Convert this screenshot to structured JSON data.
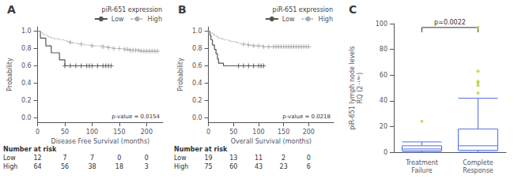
{
  "chart_data": [
    {
      "type": "step",
      "label": "A",
      "xlabel": "Disease Free Survival (months)",
      "ylabel": "Probability",
      "annotation": "p-value = 0.0154",
      "legend": "upper right",
      "legend_title": "piR-651 expression",
      "grid": false,
      "xlim": [
        0,
        230
      ],
      "ylim": [
        -0.05,
        1.05
      ],
      "xticks": [
        0,
        50,
        100,
        150,
        200
      ],
      "yticks": [
        {
          "value": 0,
          "label": "0.0"
        },
        0.2,
        0.4,
        0.6,
        0.8,
        {
          "value": 1,
          "label": "1.0"
        }
      ],
      "series": [
        {
          "name": "Low",
          "color": "#555555",
          "line_style": "solid",
          "marker": "plus",
          "x": [
            0,
            5,
            8,
            10,
            12,
            15,
            20,
            25,
            30,
            35,
            40,
            45,
            50,
            60,
            70,
            80,
            90,
            100,
            110,
            120,
            130,
            135
          ],
          "values": [
            1.0,
            0.92,
            0.92,
            0.92,
            0.92,
            0.83,
            0.83,
            0.75,
            0.75,
            0.75,
            0.67,
            0.67,
            0.6,
            0.6,
            0.6,
            0.6,
            0.6,
            0.6,
            0.6,
            0.6,
            0.6,
            0.6
          ],
          "censors": {
            "x": [
              50,
              60,
              70,
              80,
              90,
              95,
              100,
              110,
              120,
              125,
              130,
              135
            ],
            "values": [
              0.6,
              0.6,
              0.6,
              0.6,
              0.6,
              0.6,
              0.6,
              0.6,
              0.6,
              0.6,
              0.6,
              0.6
            ]
          }
        },
        {
          "name": "High",
          "color": "#aaaaaa",
          "line_style": "dotted",
          "marker": "plus",
          "x": [
            0,
            5,
            10,
            12,
            15,
            18,
            20,
            25,
            30,
            35,
            40,
            45,
            50,
            55,
            60,
            65,
            70,
            75,
            80,
            85,
            90,
            95,
            100,
            110,
            120,
            130,
            140,
            150,
            160,
            170,
            180,
            190,
            200,
            210,
            220
          ],
          "values": [
            1.0,
            0.98,
            0.97,
            0.96,
            0.95,
            0.94,
            0.93,
            0.92,
            0.91,
            0.91,
            0.9,
            0.9,
            0.89,
            0.88,
            0.87,
            0.86,
            0.86,
            0.85,
            0.85,
            0.84,
            0.84,
            0.84,
            0.83,
            0.83,
            0.82,
            0.81,
            0.8,
            0.8,
            0.79,
            0.78,
            0.78,
            0.77,
            0.77,
            0.77,
            0.77
          ],
          "censors": {
            "x": [
              60,
              80,
              100,
              120,
              130,
              140,
              150,
              160,
              165,
              170,
              175,
              180,
              185,
              190,
              195,
              200,
              205,
              210,
              215,
              220
            ],
            "values": [
              0.87,
              0.85,
              0.83,
              0.82,
              0.81,
              0.8,
              0.8,
              0.79,
              0.79,
              0.78,
              0.78,
              0.78,
              0.78,
              0.77,
              0.77,
              0.77,
              0.77,
              0.77,
              0.77,
              0.77
            ]
          }
        }
      ],
      "risk_table": {
        "title": "Number at risk",
        "times": [
          0,
          50,
          100,
          150,
          200
        ],
        "rows": [
          {
            "name": "Low",
            "values": [
              12,
              7,
              7,
              0,
              0
            ]
          },
          {
            "name": "High",
            "values": [
              64,
              56,
              38,
              18,
              3
            ]
          }
        ]
      }
    },
    {
      "type": "step",
      "label": "B",
      "xlabel": "Overall Survival (months)",
      "ylabel": "Probability",
      "annotation": "p-value = 0.0218",
      "legend": "upper right",
      "legend_title": "piR-651 expression",
      "grid": false,
      "xlim": [
        0,
        250
      ],
      "ylim": [
        -0.05,
        1.05
      ],
      "xticks": [
        0,
        50,
        100,
        150,
        200
      ],
      "yticks": [
        {
          "value": 0,
          "label": "0.0"
        },
        0.2,
        0.4,
        0.6,
        0.8,
        {
          "value": 1,
          "label": "1.0"
        }
      ],
      "series": [
        {
          "name": "Low",
          "color": "#555555",
          "line_style": "solid",
          "marker": "plus",
          "x": [
            0,
            3,
            5,
            8,
            12,
            15,
            18,
            20,
            25,
            30,
            35,
            40,
            50,
            60,
            70,
            80,
            90,
            100,
            110
          ],
          "values": [
            1.0,
            0.95,
            0.9,
            0.84,
            0.79,
            0.74,
            0.68,
            0.63,
            0.63,
            0.6,
            0.6,
            0.6,
            0.6,
            0.6,
            0.6,
            0.6,
            0.6,
            0.6,
            0.6
          ],
          "censors": {
            "x": [
              60,
              70,
              80,
              90,
              100,
              105,
              110
            ],
            "values": [
              0.6,
              0.6,
              0.6,
              0.6,
              0.6,
              0.6,
              0.6
            ]
          }
        },
        {
          "name": "High",
          "color": "#aaaaaa",
          "line_style": "dotted",
          "marker": "plus",
          "x": [
            0,
            3,
            5,
            8,
            10,
            12,
            15,
            18,
            20,
            25,
            30,
            35,
            40,
            45,
            50,
            55,
            60,
            65,
            70,
            80,
            90,
            100,
            110,
            120,
            130,
            140,
            150,
            160,
            170,
            180,
            190,
            200
          ],
          "values": [
            1.0,
            0.99,
            0.98,
            0.97,
            0.96,
            0.95,
            0.94,
            0.93,
            0.92,
            0.91,
            0.9,
            0.9,
            0.89,
            0.88,
            0.88,
            0.87,
            0.86,
            0.85,
            0.85,
            0.84,
            0.83,
            0.83,
            0.82,
            0.82,
            0.82,
            0.82,
            0.82,
            0.82,
            0.82,
            0.82,
            0.82,
            0.82
          ],
          "censors": {
            "x": [
              70,
              80,
              90,
              100,
              110,
              120,
              130,
              135,
              140,
              145,
              150,
              155,
              160,
              165,
              170,
              175,
              180,
              185,
              190,
              195,
              200
            ],
            "values": [
              0.85,
              0.84,
              0.83,
              0.83,
              0.82,
              0.82,
              0.82,
              0.82,
              0.82,
              0.82,
              0.82,
              0.82,
              0.82,
              0.82,
              0.82,
              0.82,
              0.82,
              0.82,
              0.82,
              0.82,
              0.82
            ]
          }
        }
      ],
      "risk_table": {
        "title": "Number at risk",
        "times": [
          0,
          50,
          100,
          150,
          200
        ],
        "rows": [
          {
            "name": "Low",
            "values": [
              19,
              13,
              11,
              2,
              0
            ]
          },
          {
            "name": "High",
            "values": [
              75,
              60,
              43,
              23,
              6
            ]
          }
        ]
      }
    },
    {
      "type": "boxplot",
      "label": "C",
      "ylabel": "piR-651 lymph node levels\nRQ (2⁻ᴸᴺᶜ)",
      "annotation": {
        "text": "p=0.0022",
        "y": 97
      },
      "grid": false,
      "ylim": [
        0,
        100
      ],
      "yticks": [
        0,
        20,
        40,
        60,
        80,
        100
      ],
      "categories": [
        "Treatment\nFailure",
        "Complete\nResponse"
      ],
      "boxes": [
        {
          "whislo": 0.0,
          "q1": 1.0,
          "median": 2.5,
          "q3": 5.0,
          "whishi": 8.0,
          "outliers": [
            24.0
          ]
        },
        {
          "whislo": 0.0,
          "q1": 1.5,
          "median": 5.0,
          "q3": 18.0,
          "whishi": 42.0,
          "outliers": [
            46.0,
            52.0,
            54.0,
            55.0,
            63.0,
            97.0
          ]
        }
      ]
    }
  ]
}
